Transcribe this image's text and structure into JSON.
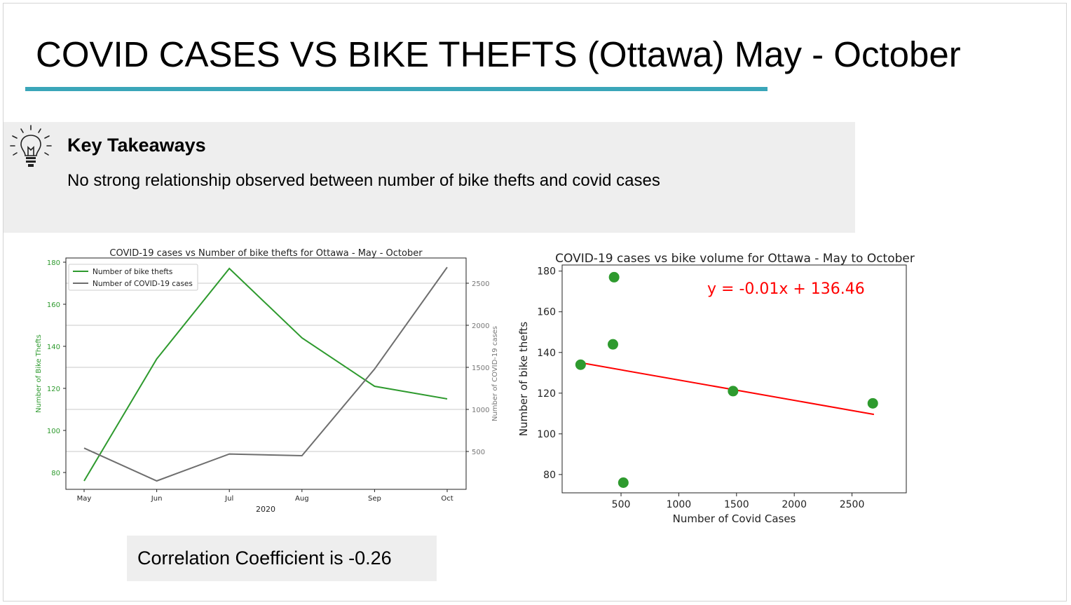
{
  "slide": {
    "title": "COVID CASES VS BIKE THEFTS (Ottawa) May - October",
    "accent_color": "#3aa6b9"
  },
  "takeaways": {
    "icon": "lightbulb-icon",
    "heading": "Key Takeaways",
    "text": "No strong relationship observed between number of bike thefts and covid cases"
  },
  "correlation": {
    "text": "Correlation Coefficient is -0.26"
  },
  "chart_data": [
    {
      "type": "line",
      "title": "COVID-19 cases vs Number of bike thefts for Ottawa - May - October",
      "xlabel": "2020",
      "categories": [
        "May",
        "Jun",
        "Jul",
        "Aug",
        "Sep",
        "Oct"
      ],
      "series": [
        {
          "name": "Number of bike thefts",
          "axis": "left",
          "color": "#2e9a2e",
          "values": [
            76,
            134,
            177,
            144,
            121,
            115
          ]
        },
        {
          "name": "Number of COVID-19 cases",
          "axis": "right",
          "color": "#6e6e6e",
          "values": [
            540,
            150,
            470,
            450,
            1480,
            2690
          ]
        }
      ],
      "ylabel": "Number of Bike Thefts",
      "ylabel_color": "#2e9a2e",
      "ylim": [
        72,
        182
      ],
      "yticks": [
        80,
        100,
        120,
        140,
        160,
        180
      ],
      "y2label": "Number of COVID-19 cases",
      "y2lim": [
        50,
        2800
      ],
      "y2ticks": [
        500,
        1000,
        1500,
        2000,
        2500
      ],
      "grid": "right-axis horizontal",
      "legend": "top-left"
    },
    {
      "type": "scatter",
      "title": "COVID-19 cases vs bike volume for Ottawa - May to October",
      "xlabel": "Number of Covid Cases",
      "ylabel": "Number of bike thefts",
      "points": [
        {
          "x": 150,
          "y": 134
        },
        {
          "x": 440,
          "y": 177
        },
        {
          "x": 430,
          "y": 144
        },
        {
          "x": 1470,
          "y": 121
        },
        {
          "x": 2680,
          "y": 115
        },
        {
          "x": 520,
          "y": 76
        }
      ],
      "point_color": "#2e9a2e",
      "regression": {
        "equation": "y = -0.01x + 136.46",
        "slope": -0.01,
        "intercept": 136.46,
        "x_range": [
          150,
          2690
        ],
        "color": "#ff0000"
      },
      "xlim": [
        -10,
        2970
      ],
      "xticks": [
        500,
        1000,
        1500,
        2000,
        2500
      ],
      "ylim": [
        71,
        183
      ],
      "yticks": [
        80,
        100,
        120,
        140,
        160,
        180
      ],
      "grid": false
    }
  ]
}
